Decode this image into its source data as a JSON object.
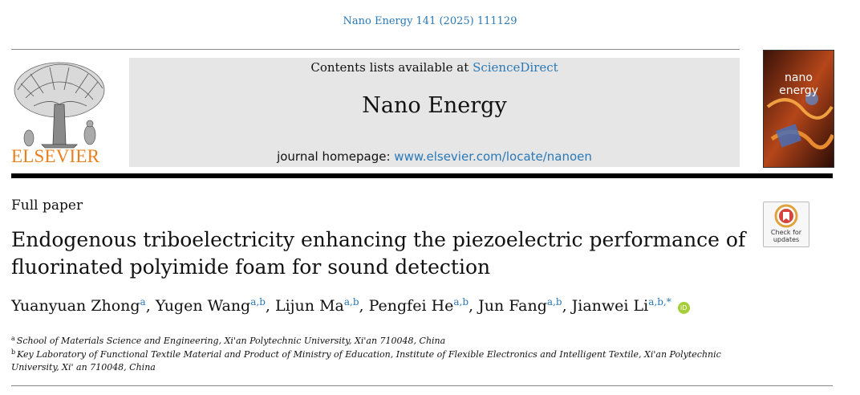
{
  "header": {
    "journal_ref": "Nano Energy 141 (2025) 111129",
    "contents_prefix": "Contents lists available at",
    "contents_link": "ScienceDirect",
    "journal_name": "Nano Energy",
    "homepage_prefix": "journal homepage:",
    "homepage_link": "www.elsevier.com/locate/nanoen",
    "publisher": "ELSEVIER",
    "cover_title": "nano energy",
    "check_updates": "Check for updates"
  },
  "article": {
    "type": "Full paper",
    "title": "Endogenous triboelectricity enhancing the piezoelectric performance of fluorinated polyimide foam for sound detection",
    "authors": [
      {
        "name": "Yuanyuan Zhong",
        "sup": "a"
      },
      {
        "name": "Yugen Wang",
        "sup": "a,b"
      },
      {
        "name": "Lijun Ma",
        "sup": "a,b"
      },
      {
        "name": "Pengfei He",
        "sup": "a,b"
      },
      {
        "name": "Jun Fang",
        "sup": "a,b"
      },
      {
        "name": "Jianwei Li",
        "sup": "a,b,*"
      }
    ],
    "orcid_label": "iD",
    "affiliations": [
      {
        "mark": "a",
        "text": "School of Materials Science and Engineering, Xi'an Polytechnic University, Xi'an 710048, China"
      },
      {
        "mark": "b",
        "text": "Key Laboratory of Functional Textile Material and Product of Ministry of Education, Institute of Flexible Electronics and Intelligent Textile, Xi'an Polytechnic University, Xi' an 710048, China"
      }
    ]
  },
  "colors": {
    "link": "#2a78b6",
    "elsevier_orange": "#e8801d",
    "header_grey": "#e6e6e6",
    "orcid_green": "#a6ce39"
  }
}
